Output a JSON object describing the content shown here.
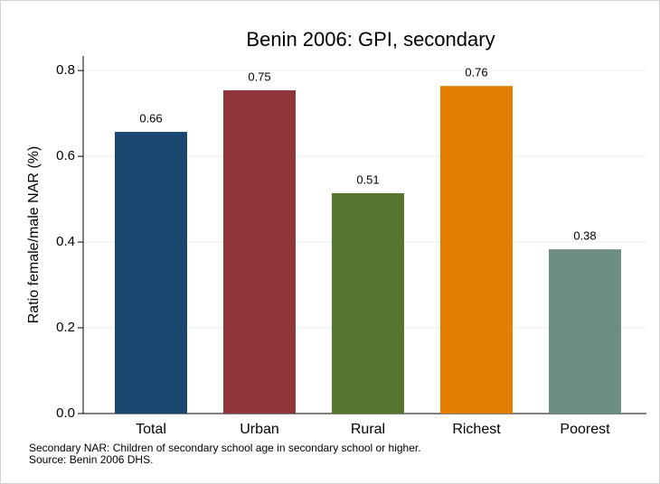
{
  "chart_data": {
    "type": "bar",
    "title": "Benin 2006: GPI, secondary",
    "y_label": "Ratio female/male NAR (%)",
    "categories": [
      "Total",
      "Urban",
      "Rural",
      "Richest",
      "Poorest"
    ],
    "values": [
      0.657,
      0.754,
      0.514,
      0.764,
      0.383
    ],
    "value_labels": [
      "0.66",
      "0.75",
      "0.51",
      "0.76",
      "0.38"
    ],
    "colors": [
      "#1a476f",
      "#90353b",
      "#55752f",
      "#e37e00",
      "#6e8e84"
    ],
    "ylim": [
      0,
      0.834
    ],
    "yticks": [
      {
        "value": 0,
        "label": "0.0"
      },
      0.2,
      0.4,
      0.6,
      0.8
    ],
    "grid": true,
    "notes": [
      "Secondary NAR: Children of secondary school age in secondary school or higher.",
      "Source: Benin 2006 DHS."
    ]
  }
}
